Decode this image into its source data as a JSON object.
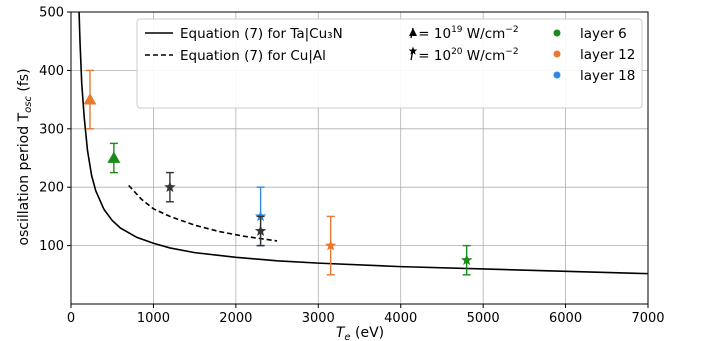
{
  "chart_data": {
    "type": "scatter",
    "xlabel_main": "T",
    "xlabel_sub": "e",
    "xlabel_unit": " (eV)",
    "ylabel_main": "oscillation period T",
    "ylabel_sub": "osc",
    "ylabel_unit": " (fs)",
    "xlim": [
      0,
      7000
    ],
    "ylim": [
      0,
      500
    ],
    "x_ticks": [
      0,
      1000,
      2000,
      3000,
      4000,
      5000,
      6000,
      7000
    ],
    "y_ticks": [
      100,
      200,
      300,
      400,
      500
    ],
    "grid": true,
    "legend_position": "top-center",
    "curves": [
      {
        "name": "Equation (7) for Ta|Cu₃N",
        "style": "solid",
        "color": "#000000",
        "x": [
          98,
          110,
          130,
          160,
          200,
          250,
          300,
          400,
          500,
          600,
          800,
          1000,
          1200,
          1500,
          2000,
          2500,
          3000,
          4000,
          5000,
          6000,
          7000
        ],
        "y": [
          500,
          446,
          378,
          320,
          263,
          220,
          194,
          162,
          143,
          130,
          114,
          104,
          96,
          88,
          80,
          74,
          70,
          64,
          60,
          56,
          52
        ]
      },
      {
        "name": "Equation (7) for Cu|Al",
        "style": "dashed",
        "color": "#000000",
        "x": [
          700,
          850,
          1000,
          1200,
          1500,
          1800,
          2100,
          2500
        ],
        "y": [
          203,
          180,
          163,
          150,
          135,
          124,
          116,
          108
        ]
      }
    ],
    "points": [
      {
        "x": 230,
        "y": 350,
        "err": 50,
        "marker": "triangle",
        "color": "#e8792e"
      },
      {
        "x": 520,
        "y": 250,
        "err": 25,
        "marker": "triangle",
        "color": "#1a8a1a"
      },
      {
        "x": 1200,
        "y": 200,
        "err": 25,
        "marker": "star",
        "color": "#333333"
      },
      {
        "x": 2300,
        "y": 150,
        "err": 50,
        "marker": "star",
        "color": "#2e8ae6"
      },
      {
        "x": 2300,
        "y": 125,
        "err": 25,
        "marker": "star",
        "color": "#333333"
      },
      {
        "x": 3150,
        "y": 100,
        "err": 50,
        "marker": "star",
        "color": "#e8792e"
      },
      {
        "x": 4800,
        "y": 75,
        "err": 25,
        "marker": "star",
        "color": "#1a8a1a"
      }
    ],
    "legend": [
      {
        "kind": "line",
        "style": "solid",
        "label": "Equation (7) for Ta|Cu₃N"
      },
      {
        "kind": "line",
        "style": "dashed",
        "label": "Equation (7) for Cu|Al"
      },
      {
        "kind": "marker",
        "marker": "triangle",
        "label_pre": "I",
        "label_mid": " = 10",
        "label_sup": "19",
        "label_post": " W/cm",
        "label_sup2": "−2"
      },
      {
        "kind": "marker",
        "marker": "star",
        "label_pre": "I",
        "label_mid": " = 10",
        "label_sup": "20",
        "label_post": " W/cm",
        "label_sup2": "−2"
      },
      {
        "kind": "dot",
        "color": "#1a8a1a",
        "label": "layer 6"
      },
      {
        "kind": "dot",
        "color": "#e8792e",
        "label": "layer 12"
      },
      {
        "kind": "dot",
        "color": "#2e8ae6",
        "label": "layer 18"
      }
    ]
  }
}
